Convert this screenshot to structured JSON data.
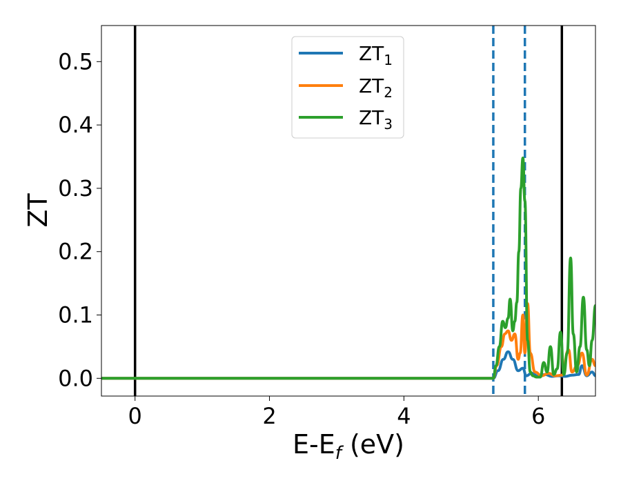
{
  "chart_data": {
    "type": "line",
    "xlabel": "E-E",
    "xlabel_sub": "f",
    "xlabel_unit": " (eV)",
    "ylabel": "ZT",
    "xlim": [
      -0.5,
      6.85
    ],
    "ylim": [
      -0.028,
      0.557
    ],
    "xticks": [
      0,
      2,
      4,
      6
    ],
    "xtick_labels": [
      "0",
      "2",
      "4",
      "6"
    ],
    "yticks": [
      0.0,
      0.1,
      0.2,
      0.3,
      0.4,
      0.5
    ],
    "ytick_labels": [
      "0.0",
      "0.1",
      "0.2",
      "0.3",
      "0.4",
      "0.5"
    ],
    "grid": false,
    "legend_position": "top-center",
    "series": [
      {
        "name": "ZT",
        "name_sub": "1",
        "color": "#1f77b4",
        "x": [
          -0.5,
          5.0,
          5.33,
          5.4,
          5.48,
          5.55,
          5.62,
          5.7,
          5.77,
          5.82,
          5.9,
          6.0,
          6.1,
          6.2,
          6.3,
          6.4,
          6.5,
          6.6,
          6.65,
          6.72,
          6.8,
          6.85
        ],
        "y": [
          0.0,
          0.0,
          0.0,
          0.012,
          0.03,
          0.042,
          0.03,
          0.012,
          0.016,
          0.004,
          0.008,
          0.003,
          0.006,
          0.003,
          0.004,
          0.003,
          0.005,
          0.006,
          0.02,
          0.004,
          0.01,
          0.004
        ]
      },
      {
        "name": "ZT",
        "name_sub": "2",
        "color": "#ff7f0e",
        "x": [
          -0.5,
          5.0,
          5.33,
          5.38,
          5.45,
          5.5,
          5.55,
          5.6,
          5.65,
          5.7,
          5.73,
          5.77,
          5.8,
          5.84,
          5.88,
          5.95,
          6.05,
          6.15,
          6.25,
          6.35,
          6.45,
          6.5,
          6.58,
          6.65,
          6.72,
          6.8,
          6.85
        ],
        "y": [
          0.0,
          0.0,
          0.0,
          0.02,
          0.05,
          0.07,
          0.075,
          0.06,
          0.07,
          0.03,
          0.04,
          0.1,
          0.04,
          0.118,
          0.04,
          0.01,
          0.004,
          0.008,
          0.004,
          0.005,
          0.045,
          0.01,
          0.02,
          0.04,
          0.005,
          0.03,
          0.02
        ]
      },
      {
        "name": "ZT",
        "name_sub": "3",
        "color": "#2ca02c",
        "x": [
          -0.5,
          5.0,
          5.33,
          5.37,
          5.42,
          5.47,
          5.51,
          5.55,
          5.58,
          5.62,
          5.65,
          5.68,
          5.71,
          5.74,
          5.77,
          5.8,
          5.84,
          5.88,
          5.92,
          5.97,
          6.03,
          6.08,
          6.13,
          6.18,
          6.23,
          6.28,
          6.33,
          6.38,
          6.43,
          6.48,
          6.52,
          6.57,
          6.62,
          6.67,
          6.72,
          6.76,
          6.8,
          6.85
        ],
        "y": [
          0.0,
          0.0,
          0.0,
          0.02,
          0.05,
          0.09,
          0.08,
          0.095,
          0.125,
          0.075,
          0.09,
          0.12,
          0.2,
          0.3,
          0.348,
          0.28,
          0.06,
          0.01,
          0.004,
          0.002,
          0.002,
          0.025,
          0.01,
          0.05,
          0.006,
          0.015,
          0.073,
          0.006,
          0.04,
          0.19,
          0.07,
          0.01,
          0.05,
          0.128,
          0.045,
          0.02,
          0.06,
          0.115
        ]
      }
    ],
    "vlines": [
      {
        "x": 0.0,
        "style": "solid",
        "color": "#000000"
      },
      {
        "x": 6.35,
        "style": "solid",
        "color": "#000000"
      },
      {
        "x": 5.33,
        "style": "dashed",
        "color": "#1f77b4"
      },
      {
        "x": 5.8,
        "style": "dashed",
        "color": "#1f77b4"
      }
    ]
  }
}
